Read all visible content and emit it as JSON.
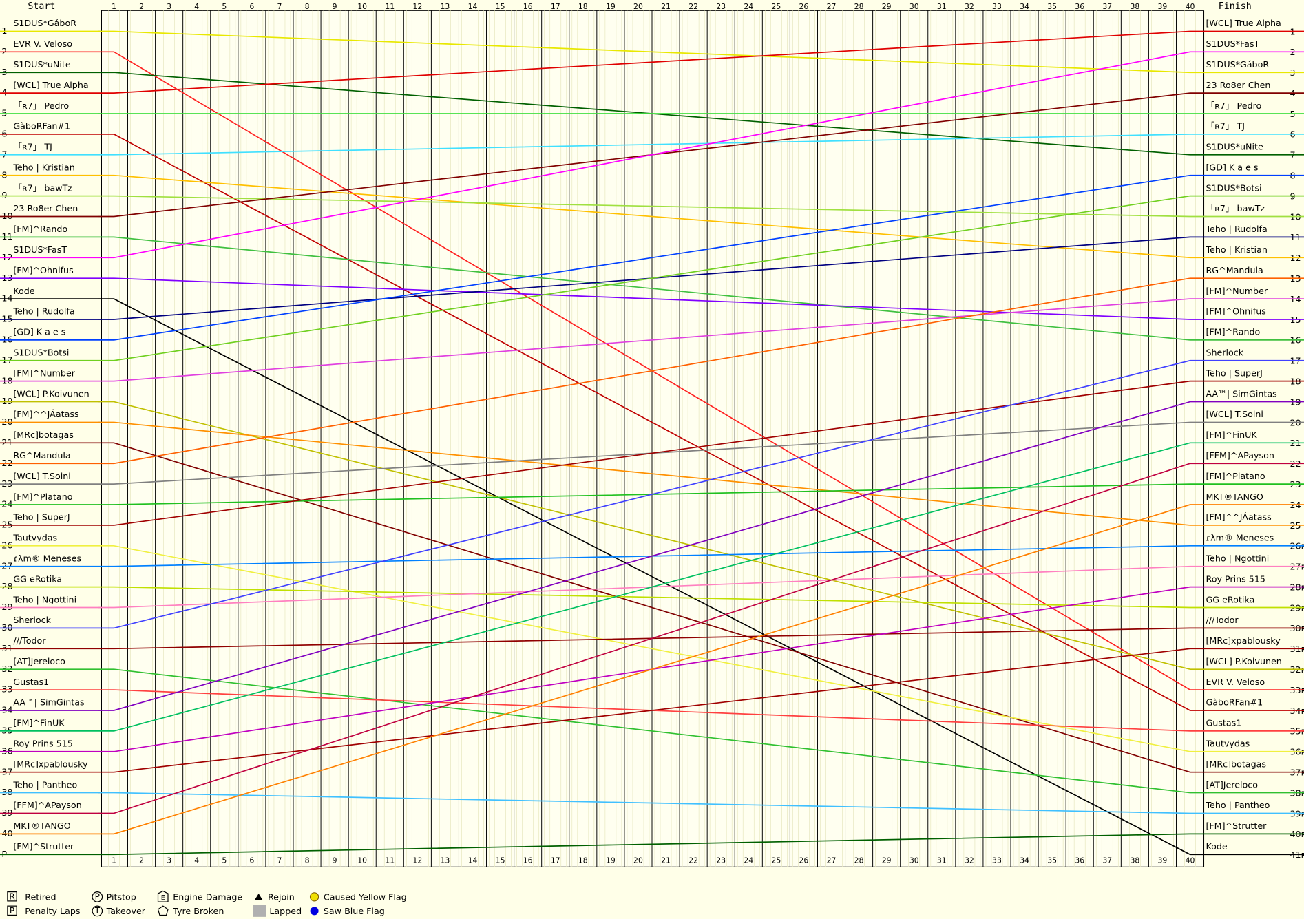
{
  "chart_data": {
    "type": "lapchart",
    "start_label": "Start",
    "finish_label": "Finish",
    "xlim": [
      1,
      40
    ],
    "xticks": [
      1,
      2,
      3,
      4,
      5,
      6,
      7,
      8,
      9,
      10,
      11,
      12,
      13,
      14,
      15,
      16,
      17,
      18,
      19,
      20,
      21,
      22,
      23,
      24,
      25,
      26,
      27,
      28,
      29,
      30,
      31,
      32,
      33,
      34,
      35,
      36,
      37,
      38,
      39,
      40
    ],
    "ylim": [
      1,
      41
    ],
    "yticks": [
      1,
      2,
      3,
      4,
      5,
      6,
      7,
      8,
      9,
      10,
      11,
      12,
      13,
      14,
      15,
      16,
      17,
      18,
      19,
      20,
      21,
      22,
      23,
      24,
      25,
      26,
      27,
      28,
      29,
      30,
      31,
      32,
      33,
      34,
      35,
      36,
      37,
      38,
      39,
      40,
      {
        "value": 41,
        "label": "P"
      }
    ],
    "y2ticks": [
      1,
      2,
      3,
      4,
      5,
      6,
      7,
      8,
      9,
      10,
      11,
      12,
      13,
      14,
      15,
      16,
      17,
      18,
      19,
      20,
      21,
      22,
      23,
      24,
      25,
      {
        "value": 26,
        "label": "26ʀ"
      },
      {
        "value": 27,
        "label": "27ʀ"
      },
      {
        "value": 28,
        "label": "28ʀ"
      },
      {
        "value": 29,
        "label": "29ʀ"
      },
      {
        "value": 30,
        "label": "30ʀ"
      },
      {
        "value": 31,
        "label": "31ʀ"
      },
      {
        "value": 32,
        "label": "32ʀ"
      },
      {
        "value": 33,
        "label": "33ʀ"
      },
      {
        "value": 34,
        "label": "34ʀ"
      },
      {
        "value": 35,
        "label": "35ʀ"
      },
      {
        "value": 36,
        "label": "36ʀ"
      },
      {
        "value": 37,
        "label": "37ʀ"
      },
      {
        "value": 38,
        "label": "38ʀ"
      },
      {
        "value": 39,
        "label": "39ʀ"
      },
      {
        "value": 40,
        "label": "40ʀ"
      },
      {
        "value": 41,
        "label": "41ʀ"
      }
    ],
    "finish_names": [
      "[WCL] True Alpha",
      "S1DUS*FasT",
      "S1DUS*GáboR",
      "23 Ro8er Chen",
      "「ʀ7」 Pedro",
      "「ʀ7」 TJ",
      "S1DUS*uNite",
      "[GD] K a e s",
      "S1DUS*Botsi",
      "「ʀ7」 bawTz",
      "Teho | Rudolfa",
      "Teho | Kristian",
      "RG^Mandula",
      "[FM]^Number",
      "[FM]^Ohnifus",
      "[FM]^Rando",
      "Sherlock",
      "Teho | SuperJ",
      "AA™| SimGintas",
      "[WCL] T.Soini",
      "[FM]^FinUK",
      "[FFM]^APayson",
      "[FM]^Platano",
      "MKT®TANGO",
      "[FM]^^JÁatass",
      "ɾλm® Meneses",
      "Teho | Ngottini",
      "Roy Prins 515",
      "GG eRotika",
      "///Todor",
      "[MRc]xpablousky",
      "[WCL] P.Koivunen",
      "EVR V. Veloso",
      "GàboRFan#1",
      "Gustas1",
      "Tautvydas",
      "[MRc]botagas",
      "[AT]Jereloco",
      "Teho | Pantheo",
      "[FM]^Strutter",
      "Kode"
    ],
    "series": [
      {
        "name": "S1DUS*GáboR",
        "color": "#e8e800",
        "values": [
          1,
          3
        ]
      },
      {
        "name": "EVR V. Veloso",
        "color": "#ff2020",
        "values": [
          2,
          33
        ]
      },
      {
        "name": "S1DUS*uNite",
        "color": "#006000",
        "values": [
          3,
          7
        ]
      },
      {
        "name": "[WCL] True Alpha",
        "color": "#e00000",
        "values": [
          4,
          1
        ]
      },
      {
        "name": "「ʀ7」 Pedro",
        "color": "#40e040",
        "values": [
          5,
          5
        ]
      },
      {
        "name": "GàboRFan#1",
        "color": "#c00000",
        "values": [
          6,
          34
        ]
      },
      {
        "name": "「ʀ7」 TJ",
        "color": "#40e0ff",
        "values": [
          7,
          6
        ]
      },
      {
        "name": "Teho | Kristian",
        "color": "#ffc000",
        "values": [
          8,
          12
        ]
      },
      {
        "name": "「ʀ7」 bawTz",
        "color": "#a0e040",
        "values": [
          9,
          10
        ]
      },
      {
        "name": "23 Ro8er Chen",
        "color": "#800000",
        "values": [
          10,
          4
        ]
      },
      {
        "name": "[FM]^Rando",
        "color": "#40c040",
        "values": [
          11,
          16
        ]
      },
      {
        "name": "S1DUS*FasT",
        "color": "#ff00ff",
        "values": [
          12,
          2
        ]
      },
      {
        "name": "[FM]^Ohnifus",
        "color": "#8000ff",
        "values": [
          13,
          15
        ]
      },
      {
        "name": "Kode",
        "color": "#000000",
        "values": [
          14,
          41
        ]
      },
      {
        "name": "Teho | Rudolfa",
        "color": "#000080",
        "values": [
          15,
          11
        ]
      },
      {
        "name": "[GD] K a e s",
        "color": "#0040ff",
        "values": [
          16,
          8
        ]
      },
      {
        "name": "S1DUS*Botsi",
        "color": "#70d020",
        "values": [
          17,
          9
        ]
      },
      {
        "name": "[FM]^Number",
        "color": "#e040e0",
        "values": [
          18,
          14
        ]
      },
      {
        "name": "[WCL] P.Koivunen",
        "color": "#c0c000",
        "values": [
          19,
          32
        ]
      },
      {
        "name": "[FM]^^JÁatass",
        "color": "#ff9000",
        "values": [
          20,
          25
        ]
      },
      {
        "name": "[MRc]botagas",
        "color": "#800000",
        "values": [
          21,
          37
        ]
      },
      {
        "name": "RG^Mandula",
        "color": "#ff6000",
        "values": [
          22,
          13
        ]
      },
      {
        "name": "[WCL] T.Soini",
        "color": "#808080",
        "values": [
          23,
          20
        ]
      },
      {
        "name": "[FM]^Platano",
        "color": "#20c020",
        "values": [
          24,
          23
        ]
      },
      {
        "name": "Teho | SuperJ",
        "color": "#a00000",
        "values": [
          25,
          18
        ]
      },
      {
        "name": "Tautvydas",
        "color": "#f0f040",
        "values": [
          26,
          36
        ]
      },
      {
        "name": "ɾλm® Meneses",
        "color": "#0080ff",
        "values": [
          27,
          26
        ]
      },
      {
        "name": "GG eRotika",
        "color": "#c0e000",
        "values": [
          28,
          29
        ]
      },
      {
        "name": "Teho | Ngottini",
        "color": "#ff80c0",
        "values": [
          29,
          27
        ]
      },
      {
        "name": "Sherlock",
        "color": "#4040ff",
        "values": [
          30,
          17
        ]
      },
      {
        "name": "///Todor",
        "color": "#900000",
        "values": [
          31,
          30
        ]
      },
      {
        "name": "[AT]Jereloco",
        "color": "#30c030",
        "values": [
          32,
          38
        ]
      },
      {
        "name": "Gustas1",
        "color": "#ff4040",
        "values": [
          33,
          35
        ]
      },
      {
        "name": "AA™| SimGintas",
        "color": "#8000c0",
        "values": [
          34,
          19
        ]
      },
      {
        "name": "[FM]^FinUK",
        "color": "#00c060",
        "values": [
          35,
          21
        ]
      },
      {
        "name": "Roy Prins 515",
        "color": "#c000c0",
        "values": [
          36,
          28
        ]
      },
      {
        "name": "[MRc]xpablousky",
        "color": "#a00000",
        "values": [
          37,
          31
        ]
      },
      {
        "name": "Teho | Pantheo",
        "color": "#40c0ff",
        "values": [
          38,
          39
        ]
      },
      {
        "name": "[FFM]^APayson",
        "color": "#c00040",
        "values": [
          39,
          22
        ]
      },
      {
        "name": "MKT®TANGO",
        "color": "#ff8000",
        "values": [
          40,
          24
        ]
      },
      {
        "name": "[FM]^Strutter",
        "color": "#006000",
        "values": [
          41,
          40
        ]
      }
    ],
    "legend": {
      "retired": "Retired",
      "penalty": "Penalty Laps",
      "pitstop": "Pitstop",
      "takeover": "Takeover",
      "engine": "Engine Damage",
      "tyre": "Tyre Broken",
      "rejoin": "Rejoin",
      "lapped": "Lapped",
      "yellow": "Caused Yellow Flag",
      "blue": "Saw Blue Flag"
    },
    "legend_symbols": {
      "retired": "R",
      "penalty": "P",
      "pitstop": "P",
      "takeover": "T",
      "engine": "E"
    }
  }
}
